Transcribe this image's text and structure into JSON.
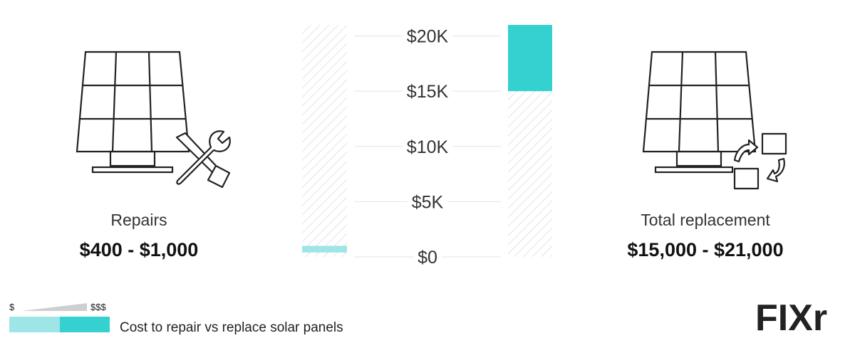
{
  "chart_data": {
    "type": "bar",
    "categories": [
      "Repairs",
      "Total replacement"
    ],
    "series": [
      {
        "range_low": [
          400,
          15000
        ],
        "range_high": [
          1000,
          21000
        ]
      }
    ],
    "y_ticks": [
      "$0",
      "$5K",
      "$10K",
      "$15K",
      "$20K"
    ],
    "y_tick_values": [
      0,
      5000,
      10000,
      15000,
      20000
    ],
    "ylim": [
      0,
      21000
    ],
    "grid": true
  },
  "left": {
    "label": "Repairs",
    "range": "$400 - $1,000"
  },
  "right": {
    "label": "Total replacement",
    "range": "$15,000 - $21,000"
  },
  "legend": {
    "low": "$",
    "high": "$$$",
    "caption": "Cost to repair vs replace solar panels"
  },
  "brand": {
    "logo": "FIXr"
  },
  "colors": {
    "repair_bar": "#9de5e7",
    "replace_bar": "#35d1d1",
    "hatch": "#dcdcdc",
    "logo_accent": "#2aa336"
  }
}
